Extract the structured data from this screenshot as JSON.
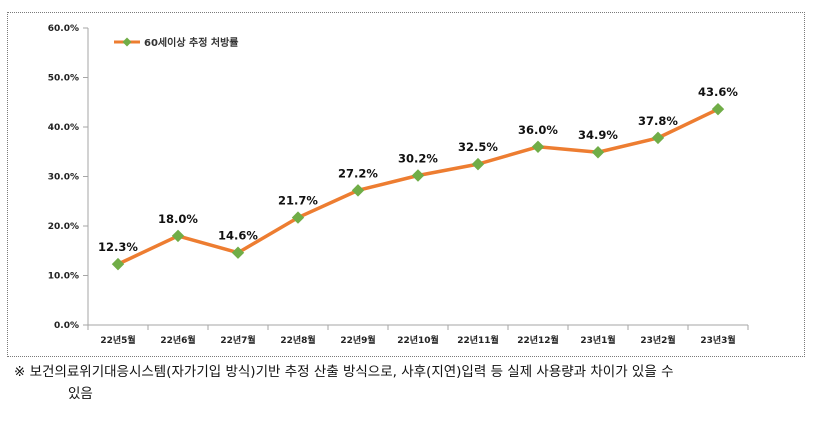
{
  "chart_data": {
    "type": "line",
    "title": "",
    "xlabel": "",
    "ylabel": "",
    "ylim": [
      0,
      60
    ],
    "yticks": [
      0,
      10,
      20,
      30,
      40,
      50,
      60
    ],
    "ytick_labels": [
      "0.0%",
      "10.0%",
      "20.0%",
      "30.0%",
      "40.0%",
      "50.0%",
      "60.0%"
    ],
    "categories": [
      "22년5월",
      "22년6월",
      "22년7월",
      "22년8월",
      "22년9월",
      "22년10월",
      "22년11월",
      "22년12월",
      "23년1월",
      "23년2월",
      "23년3월"
    ],
    "series": [
      {
        "name": "60세이상 추정 처방률",
        "values": [
          12.3,
          18.0,
          14.6,
          21.7,
          27.2,
          30.2,
          32.5,
          36.0,
          34.9,
          37.8,
          43.6
        ],
        "labels": [
          "12.3%",
          "18.0%",
          "14.6%",
          "21.7%",
          "27.2%",
          "30.2%",
          "32.5%",
          "36.0%",
          "34.9%",
          "37.8%",
          "43.6%"
        ]
      }
    ],
    "legend": "top-left",
    "grid": false,
    "colors": {
      "line": "#ED7D31",
      "marker": "#70AD47",
      "axis": "#A6A6A6"
    }
  },
  "footnote": {
    "line1": "※ 보건의료위기대응시스템(자가기입 방식)기반 추정 산출 방식으로, 사후(지연)입력 등 실제 사용량과 차이가 있을 수",
    "line2": "있음"
  }
}
